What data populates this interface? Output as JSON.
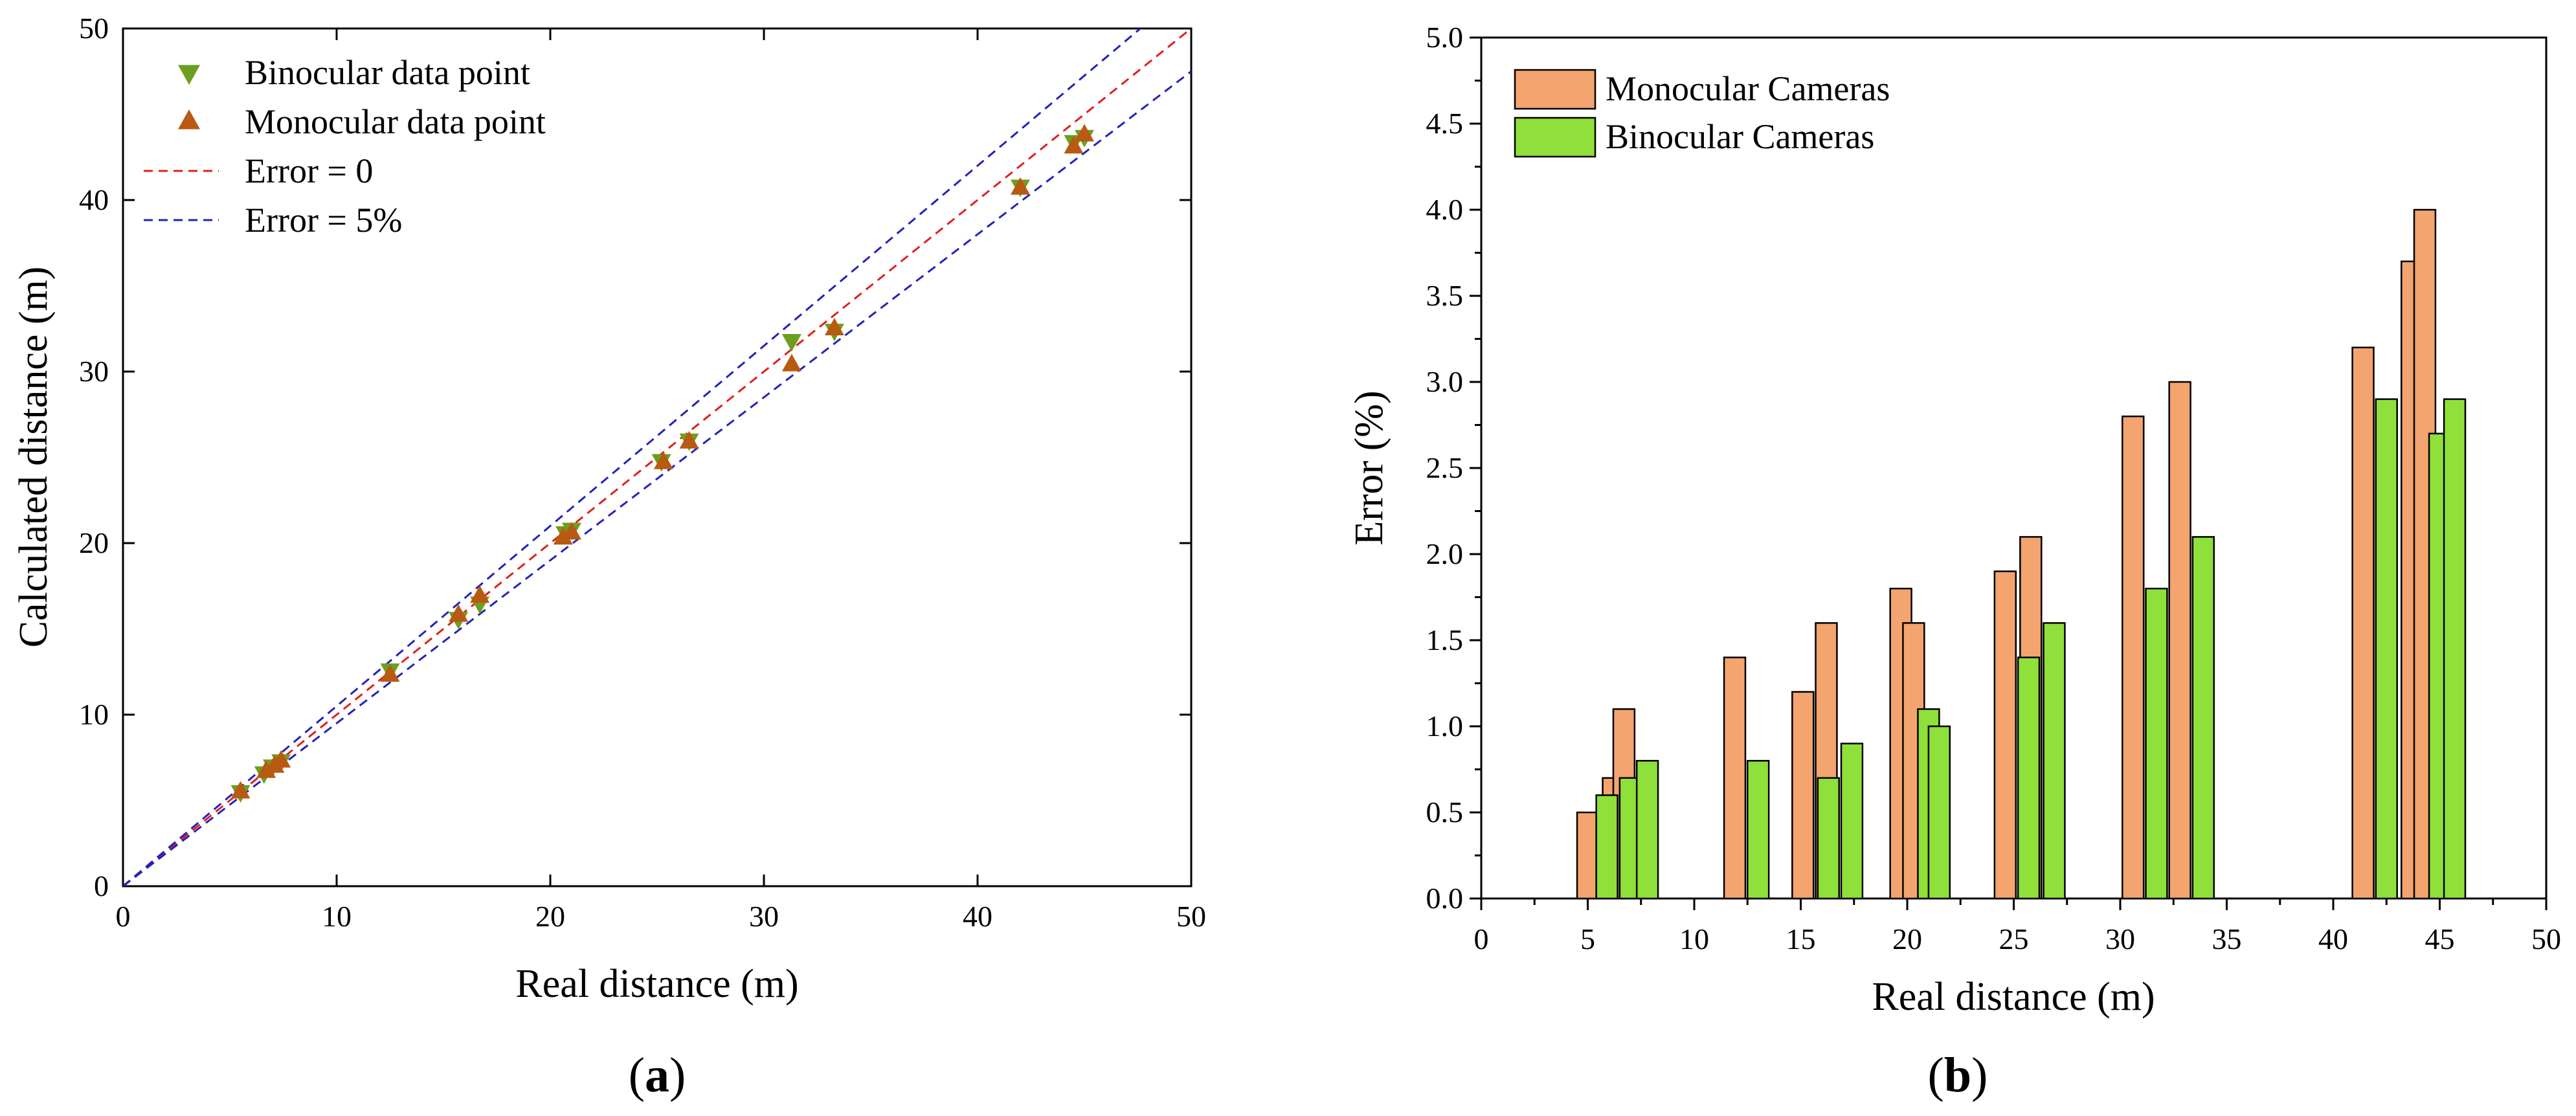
{
  "colors": {
    "binocular_marker": "#6E9E1E",
    "monocular_marker": "#B85A12",
    "error_zero_line": "#E0201C",
    "error_5pct_line": "#2222BB",
    "monocular_bar": "#F4A46E",
    "binocular_bar": "#8FE03A"
  },
  "chart_data": [
    {
      "id": "a",
      "type": "scatter",
      "caption_open": "(",
      "caption_letter": "a",
      "caption_close": ")",
      "xlabel": "Real distance (m)",
      "ylabel": "Calculated distance (m)",
      "xlim": [
        0,
        50
      ],
      "ylim": [
        0,
        50
      ],
      "xticks": [
        0,
        10,
        20,
        30,
        40,
        50
      ],
      "yticks": [
        0,
        10,
        20,
        30,
        40,
        50
      ],
      "legend": [
        {
          "label": "Binocular data point",
          "kind": "triangle-down",
          "color_key": "binocular_marker"
        },
        {
          "label": "Monocular data point",
          "kind": "triangle-up",
          "color_key": "monocular_marker"
        },
        {
          "label": "Error = 0",
          "kind": "dashed",
          "color_key": "error_zero_line"
        },
        {
          "label": "Error = 5%",
          "kind": "dashed",
          "color_key": "error_5pct_line"
        }
      ],
      "lines": [
        {
          "name": "Error = 0",
          "slope": 1.0,
          "color_key": "error_zero_line"
        },
        {
          "name": "Error = 5% (upper)",
          "slope": 1.05,
          "color_key": "error_5pct_line"
        },
        {
          "name": "Error = 5% (lower)",
          "slope": 0.95,
          "color_key": "error_5pct_line"
        }
      ],
      "series": [
        {
          "name": "Binocular data point",
          "marker": "triangle-down",
          "color_key": "binocular_marker",
          "points": [
            [
              5.5,
              5.5
            ],
            [
              6.6,
              6.6
            ],
            [
              7.0,
              7.0
            ],
            [
              7.4,
              7.3
            ],
            [
              12.5,
              12.6
            ],
            [
              15.7,
              15.6
            ],
            [
              16.7,
              16.5
            ],
            [
              20.7,
              20.6
            ],
            [
              21.0,
              20.8
            ],
            [
              25.2,
              24.8
            ],
            [
              26.5,
              26.0
            ],
            [
              31.3,
              31.8
            ],
            [
              33.3,
              32.4
            ],
            [
              42.0,
              40.8
            ],
            [
              44.5,
              43.4
            ],
            [
              45.0,
              43.7
            ]
          ]
        },
        {
          "name": "Monocular data point",
          "marker": "triangle-up",
          "color_key": "monocular_marker",
          "points": [
            [
              5.5,
              5.5
            ],
            [
              6.7,
              6.7
            ],
            [
              7.1,
              7.0
            ],
            [
              7.4,
              7.3
            ],
            [
              12.5,
              12.3
            ],
            [
              15.7,
              15.8
            ],
            [
              16.7,
              16.9
            ],
            [
              20.6,
              20.3
            ],
            [
              21.0,
              20.6
            ],
            [
              25.3,
              24.7
            ],
            [
              26.5,
              25.9
            ],
            [
              31.3,
              30.4
            ],
            [
              33.3,
              32.5
            ],
            [
              42.0,
              40.7
            ],
            [
              44.5,
              43.1
            ],
            [
              45.0,
              43.8
            ]
          ]
        }
      ]
    },
    {
      "id": "b",
      "type": "bar",
      "caption_open": "(",
      "caption_letter": "b",
      "caption_close": ")",
      "xlabel": "Real distance (m)",
      "ylabel": "Error (%)",
      "xlim": [
        0,
        50
      ],
      "ylim": [
        0,
        5
      ],
      "xticks": [
        0,
        5,
        10,
        15,
        20,
        25,
        30,
        35,
        40,
        45,
        50
      ],
      "yticks": [
        "0.0",
        "0.5",
        "1.0",
        "1.5",
        "2.0",
        "2.5",
        "3.0",
        "3.5",
        "4.0",
        "4.5",
        "5.0"
      ],
      "bar_width": 1.0,
      "legend": [
        {
          "label": "Monocular Cameras",
          "color_key": "monocular_bar"
        },
        {
          "label": "Binocular Cameras",
          "color_key": "binocular_bar"
        }
      ],
      "series": [
        {
          "name": "Monocular Cameras",
          "color_key": "monocular_bar",
          "bars": [
            [
              5.0,
              0.5
            ],
            [
              6.2,
              0.7
            ],
            [
              6.7,
              1.1
            ],
            [
              11.9,
              1.4
            ],
            [
              15.1,
              1.2
            ],
            [
              16.2,
              1.6
            ],
            [
              19.7,
              1.8
            ],
            [
              20.3,
              1.6
            ],
            [
              24.6,
              1.9
            ],
            [
              25.8,
              2.1
            ],
            [
              30.6,
              2.8
            ],
            [
              32.8,
              3.0
            ],
            [
              41.4,
              3.2
            ],
            [
              43.7,
              3.7
            ],
            [
              44.3,
              4.0
            ]
          ]
        },
        {
          "name": "Binocular Cameras",
          "color_key": "binocular_bar",
          "bars": [
            [
              5.9,
              0.6
            ],
            [
              7.0,
              0.7
            ],
            [
              7.8,
              0.8
            ],
            [
              13.0,
              0.8
            ],
            [
              16.3,
              0.7
            ],
            [
              17.4,
              0.9
            ],
            [
              21.0,
              1.1
            ],
            [
              21.5,
              1.0
            ],
            [
              25.7,
              1.4
            ],
            [
              26.9,
              1.6
            ],
            [
              31.7,
              1.8
            ],
            [
              33.9,
              2.1
            ],
            [
              42.5,
              2.9
            ],
            [
              45.0,
              2.7
            ],
            [
              45.7,
              2.9
            ]
          ]
        }
      ]
    }
  ]
}
